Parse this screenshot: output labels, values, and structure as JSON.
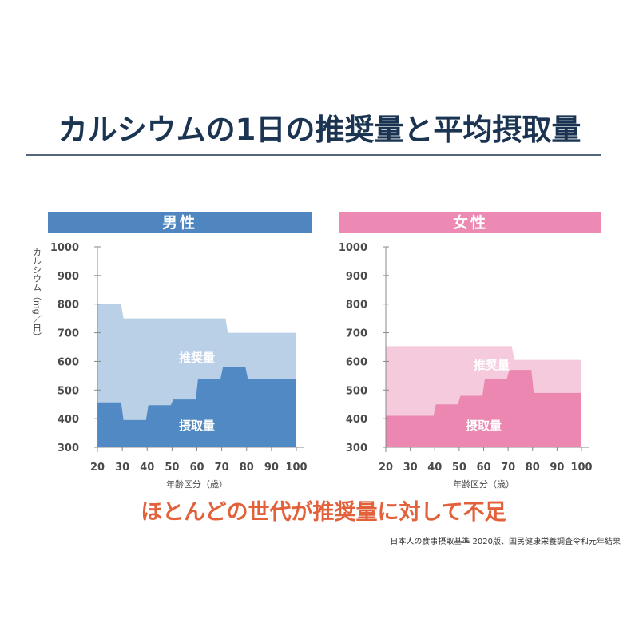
{
  "title": "カルシウムの1日の推奨量と平均摂取量",
  "conclusion": "ほとんどの世代が推奨量に対して不足",
  "source": "日本人の食事摂取基準 2020版、国民健康栄養調査令和元年結果",
  "chart_data": [
    {
      "type": "area",
      "title": "男性",
      "ylabel": "カルシウム（mg／日）",
      "xlabel": "年齢区分（歳）",
      "xlim": [
        20,
        100
      ],
      "ylim": [
        300,
        1000
      ],
      "xticks": [
        20,
        30,
        40,
        50,
        60,
        70,
        80,
        90,
        100
      ],
      "yticks": [
        300,
        400,
        500,
        600,
        700,
        800,
        900,
        1000
      ],
      "header_color": "#4f86c0",
      "series": [
        {
          "name": "推奨量",
          "color": "#bad0e7",
          "steps": [
            [
              20,
              30,
              800
            ],
            [
              30,
              72,
              750
            ],
            [
              72,
              100,
              700
            ]
          ]
        },
        {
          "name": "摂取量",
          "color": "#5089c3",
          "steps": [
            [
              20,
              30,
              457
            ],
            [
              30,
              40,
              395
            ],
            [
              40,
              50,
              447
            ],
            [
              50,
              60,
              467
            ],
            [
              60,
              70,
              540
            ],
            [
              70,
              80,
              580
            ],
            [
              80,
              100,
              540
            ]
          ]
        }
      ]
    },
    {
      "type": "area",
      "title": "女性",
      "xlabel": "年齢区分（歳）",
      "xlim": [
        20,
        100
      ],
      "ylim": [
        300,
        1000
      ],
      "xticks": [
        20,
        30,
        40,
        50,
        60,
        70,
        80,
        90,
        100
      ],
      "yticks": [
        300,
        400,
        500,
        600,
        700,
        800,
        900,
        1000
      ],
      "header_color": "#ec8ab3",
      "series": [
        {
          "name": "推奨量",
          "color": "#f6cadd",
          "steps": [
            [
              20,
              72,
              653
            ],
            [
              72,
              100,
              605
            ]
          ]
        },
        {
          "name": "摂取量",
          "color": "#eb87b1",
          "steps": [
            [
              20,
              40,
              410
            ],
            [
              40,
              50,
              450
            ],
            [
              50,
              60,
              480
            ],
            [
              60,
              70,
              540
            ],
            [
              70,
              80,
              570
            ],
            [
              80,
              100,
              490
            ]
          ]
        }
      ]
    }
  ]
}
